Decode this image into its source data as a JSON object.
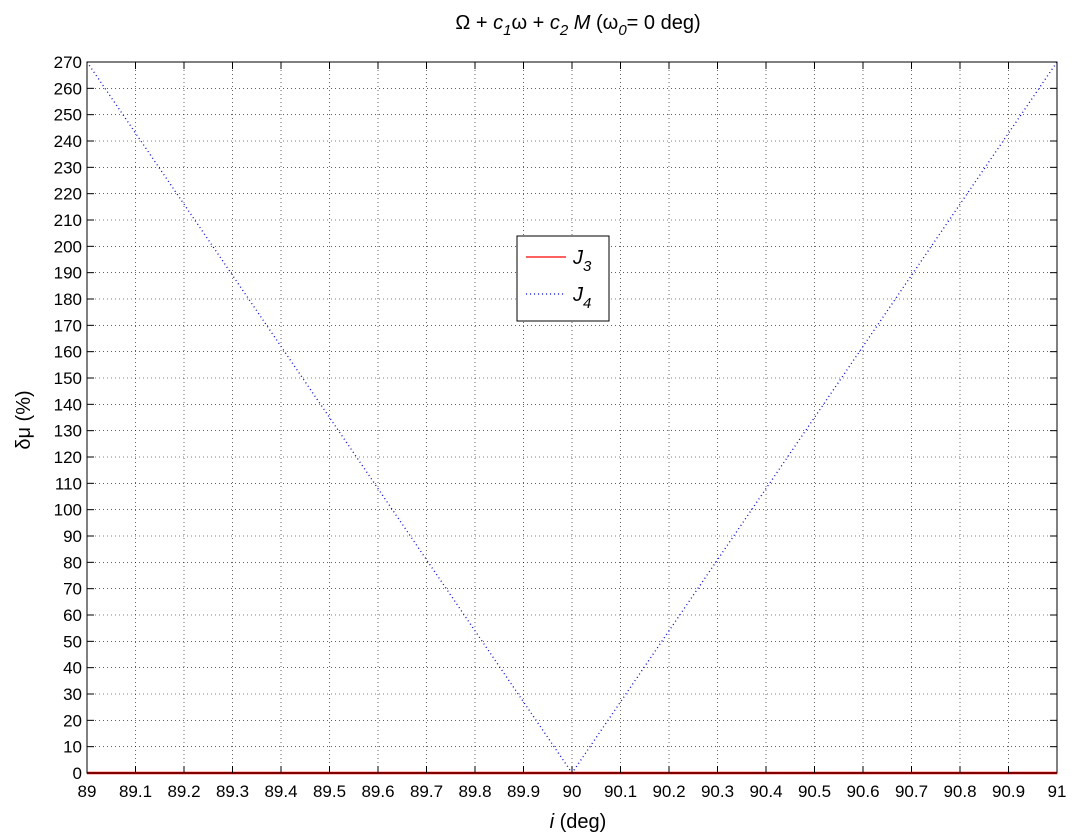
{
  "chart_data": {
    "type": "line",
    "title": {
      "omega": "Ω",
      "plus1": " + ",
      "c": "c",
      "sub1": "1",
      "omega_small": "ω",
      "plus2": " + ",
      "c2": "c",
      "sub2": "2",
      "M": " M",
      "paren_open": "  (ω",
      "sub0": "0",
      "rest": "= 0 deg)"
    },
    "xlabel": {
      "italic": "i",
      "rest": " (deg)"
    },
    "ylabel": "δμ (%)",
    "xlim": [
      89,
      91
    ],
    "ylim": [
      0,
      270
    ],
    "x_ticks": [
      "89",
      "89.1",
      "89.2",
      "89.3",
      "89.4",
      "89.5",
      "89.6",
      "89.7",
      "89.8",
      "89.9",
      "90",
      "90.1",
      "90.2",
      "90.3",
      "90.4",
      "90.5",
      "90.6",
      "90.7",
      "90.8",
      "90.9",
      "91"
    ],
    "y_ticks": [
      "0",
      "10",
      "20",
      "30",
      "40",
      "50",
      "60",
      "70",
      "80",
      "90",
      "100",
      "110",
      "120",
      "130",
      "140",
      "150",
      "160",
      "170",
      "180",
      "190",
      "200",
      "210",
      "220",
      "230",
      "240",
      "250",
      "260",
      "270"
    ],
    "grid": true,
    "legend_placement": "center",
    "series": [
      {
        "name": "J",
        "name_sub": "3",
        "color": "#ff0000",
        "style": "solid",
        "x": [
          89,
          91
        ],
        "y": [
          0,
          0
        ]
      },
      {
        "name": "J",
        "name_sub": "4",
        "color": "#0000ff",
        "style": "dotted",
        "x": [
          89,
          90,
          91
        ],
        "y": [
          270,
          0,
          270
        ]
      }
    ]
  }
}
